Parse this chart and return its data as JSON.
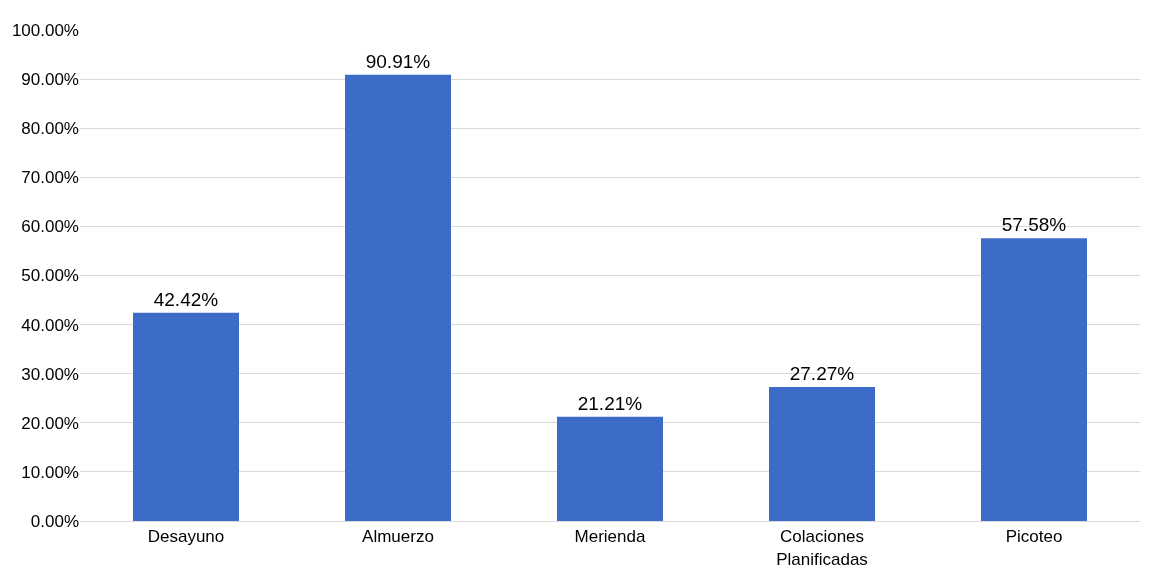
{
  "chart_data": {
    "type": "bar",
    "categories": [
      "Desayuno",
      "Almuerzo",
      "Merienda",
      "Colaciones Planificadas",
      "Picoteo"
    ],
    "values": [
      42.42,
      90.91,
      21.21,
      27.27,
      57.58
    ],
    "value_labels": [
      "42.42%",
      "90.91%",
      "21.21%",
      "27.27%",
      "57.58%"
    ],
    "color": "#3d6cc8",
    "ylim": [
      0,
      100
    ],
    "yticks": [
      {
        "value": 0,
        "label": "0.00%"
      },
      {
        "value": 10,
        "label": "10.00%"
      },
      {
        "value": 20,
        "label": "20.00%"
      },
      {
        "value": 30,
        "label": "30.00%"
      },
      {
        "value": 40,
        "label": "40.00%"
      },
      {
        "value": 50,
        "label": "50.00%"
      },
      {
        "value": 60,
        "label": "60.00%"
      },
      {
        "value": 70,
        "label": "70.00%"
      },
      {
        "value": 80,
        "label": "80.00%"
      },
      {
        "value": 90,
        "label": "90.00%"
      },
      {
        "value": 100,
        "label": "100.00%"
      }
    ],
    "grid": "y",
    "legend": false
  }
}
